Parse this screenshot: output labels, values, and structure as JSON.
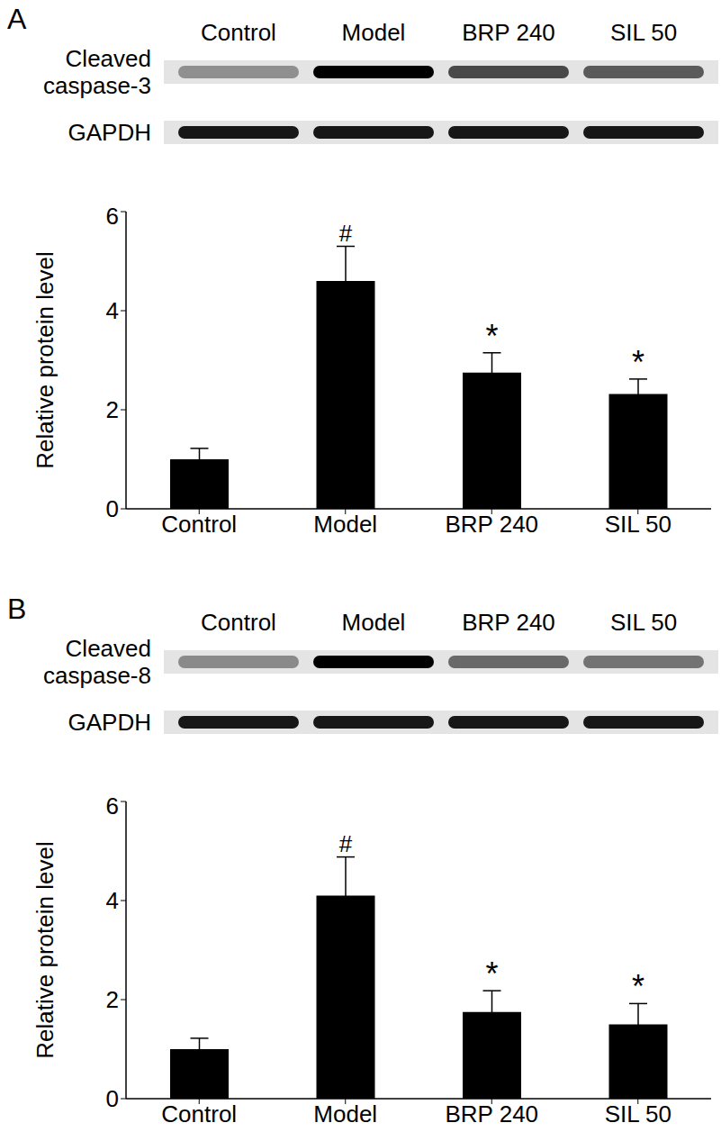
{
  "chart_data": [
    {
      "type": "bar",
      "panel": "A",
      "blot_rows": [
        "Cleaved caspase-3",
        "GAPDH"
      ],
      "ylabel": "Relative protein level",
      "categories": [
        "Control",
        "Model",
        "BRP 240",
        "SIL 50"
      ],
      "values": [
        1.0,
        4.6,
        2.75,
        2.32
      ],
      "errors": [
        0.22,
        0.7,
        0.4,
        0.3
      ],
      "annotations": [
        null,
        "#",
        "*",
        "*"
      ],
      "color": "#000000",
      "ylim": [
        0,
        6
      ],
      "yticks": [
        0,
        2,
        4,
        6
      ]
    },
    {
      "type": "bar",
      "panel": "B",
      "blot_rows": [
        "Cleaved caspase-8",
        "GAPDH"
      ],
      "ylabel": "Relative protein level",
      "categories": [
        "Control",
        "Model",
        "BRP 240",
        "SIL 50"
      ],
      "values": [
        1.0,
        4.1,
        1.75,
        1.5
      ],
      "errors": [
        0.22,
        0.78,
        0.43,
        0.42
      ],
      "annotations": [
        null,
        "#",
        "*",
        "*"
      ],
      "color": "#000000",
      "ylim": [
        0,
        6
      ],
      "yticks": [
        0,
        2,
        4,
        6
      ]
    }
  ]
}
